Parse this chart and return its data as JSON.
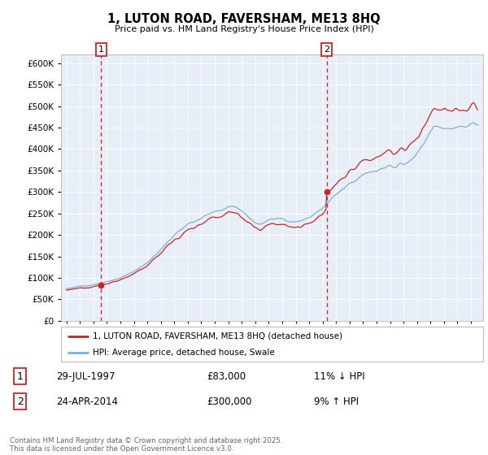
{
  "title": "1, LUTON ROAD, FAVERSHAM, ME13 8HQ",
  "subtitle": "Price paid vs. HM Land Registry's House Price Index (HPI)",
  "legend_line1": "1, LUTON ROAD, FAVERSHAM, ME13 8HQ (detached house)",
  "legend_line2": "HPI: Average price, detached house, Swale",
  "footer": "Contains HM Land Registry data © Crown copyright and database right 2025.\nThis data is licensed under the Open Government Licence v3.0.",
  "transaction1_label": "1",
  "transaction1_date": "29-JUL-1997",
  "transaction1_price": "£83,000",
  "transaction1_hpi": "11% ↓ HPI",
  "transaction2_label": "2",
  "transaction2_date": "24-APR-2014",
  "transaction2_price": "£300,000",
  "transaction2_hpi": "9% ↑ HPI",
  "hpi_color": "#7bafd4",
  "price_color": "#cc2222",
  "marker_color": "#cc2222",
  "dashed_line_color": "#cc2222",
  "plot_bg_color": "#e8eef8",
  "grid_color": "#ffffff",
  "ylim": [
    0,
    620000
  ],
  "yticks": [
    0,
    50000,
    100000,
    150000,
    200000,
    250000,
    300000,
    350000,
    400000,
    450000,
    500000,
    550000,
    600000
  ],
  "transaction1_year": 1997.58,
  "transaction1_value": 83000,
  "transaction2_year": 2014.31,
  "transaction2_value": 300000,
  "xlim_left": 1994.6,
  "xlim_right": 2025.9
}
